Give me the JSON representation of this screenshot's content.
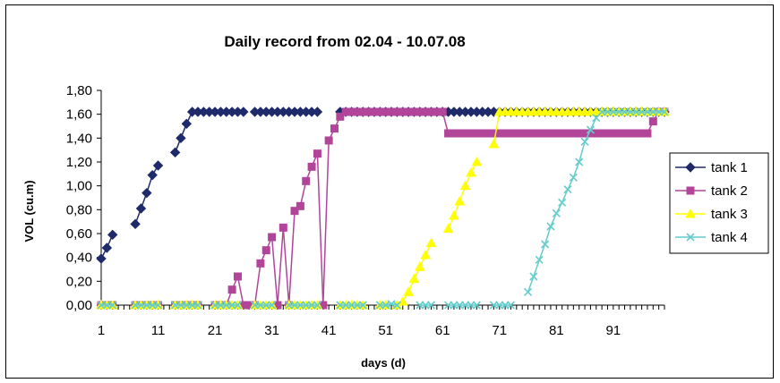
{
  "chart_data": {
    "type": "line",
    "title": "Daily record from 02.04 - 10.07.08",
    "xlabel": "days (d)",
    "ylabel": "VOL (cu.m)",
    "xlim": [
      1,
      100
    ],
    "ylim": [
      0,
      1.8
    ],
    "x_ticks": [
      "1",
      "11",
      "21",
      "31",
      "41",
      "51",
      "61",
      "71",
      "81",
      "91"
    ],
    "y_ticks": [
      "0,00",
      "0,20",
      "0,40",
      "0,60",
      "0,80",
      "1,00",
      "1,20",
      "1,40",
      "1,60",
      "1,80"
    ],
    "grid": false,
    "legend_position": "right",
    "series": [
      {
        "name": "tank 1",
        "color": "#1F2A6B",
        "marker": "diamond",
        "x": [
          1,
          2,
          3,
          7,
          8,
          9,
          10,
          11,
          14,
          15,
          16,
          17,
          18,
          19,
          20,
          21,
          22,
          23,
          24,
          25,
          26,
          28,
          29,
          30,
          31,
          32,
          33,
          34,
          35,
          36,
          37,
          38,
          39,
          43,
          44,
          45,
          46,
          47,
          48,
          49,
          50,
          51,
          52,
          53,
          54,
          55,
          56,
          57,
          58,
          59,
          60,
          61,
          62,
          63,
          64,
          65,
          66,
          67,
          68,
          69,
          70,
          71,
          72,
          73,
          74,
          75,
          76,
          77,
          78,
          79,
          80,
          81,
          82,
          83,
          84,
          85,
          86,
          87,
          88,
          89,
          90,
          91,
          92,
          93,
          94,
          95,
          96,
          97,
          98,
          99,
          100
        ],
        "y": [
          0.39,
          0.48,
          0.59,
          0.68,
          0.81,
          0.94,
          1.09,
          1.17,
          1.28,
          1.4,
          1.52,
          1.62,
          1.62,
          1.62,
          1.62,
          1.62,
          1.62,
          1.62,
          1.62,
          1.62,
          1.62,
          1.62,
          1.62,
          1.62,
          1.62,
          1.62,
          1.62,
          1.62,
          1.62,
          1.62,
          1.62,
          1.62,
          1.62,
          1.62,
          1.62,
          1.62,
          1.62,
          1.62,
          1.62,
          1.62,
          1.62,
          1.62,
          1.62,
          1.62,
          1.62,
          1.62,
          1.62,
          1.62,
          1.62,
          1.62,
          1.62,
          1.62,
          1.62,
          1.62,
          1.62,
          1.62,
          1.62,
          1.62,
          1.62,
          1.62,
          1.62,
          1.62,
          1.62,
          1.62,
          1.62,
          1.62,
          1.62,
          1.62,
          1.62,
          1.62,
          1.62,
          1.62,
          1.62,
          1.62,
          1.62,
          1.62,
          1.62,
          1.62,
          1.62,
          1.62,
          1.62,
          1.62,
          1.62,
          1.62,
          1.62,
          1.62,
          1.62,
          1.62,
          1.62,
          1.62,
          1.62
        ]
      },
      {
        "name": "tank 2",
        "color": "#B2449A",
        "marker": "square",
        "x": [
          1,
          2,
          3,
          7,
          8,
          9,
          10,
          11,
          14,
          15,
          16,
          17,
          18,
          21,
          22,
          23,
          24,
          25,
          26,
          27,
          28,
          29,
          30,
          31,
          32,
          33,
          34,
          35,
          36,
          37,
          38,
          39,
          40,
          41,
          42,
          43,
          44,
          45,
          46,
          47,
          48,
          49,
          50,
          51,
          52,
          53,
          54,
          55,
          56,
          57,
          58,
          59,
          60,
          61,
          62,
          63,
          64,
          65,
          66,
          67,
          68,
          69,
          70,
          71,
          72,
          73,
          74,
          75,
          76,
          77,
          78,
          79,
          80,
          81,
          82,
          83,
          84,
          85,
          86,
          87,
          88,
          89,
          90,
          91,
          92,
          93,
          94,
          95,
          96,
          97,
          98,
          99,
          100
        ],
        "y": [
          0,
          0,
          0,
          0,
          0,
          0,
          0,
          0,
          0,
          0,
          0,
          0,
          0,
          0,
          0,
          0,
          0.13,
          0.24,
          0,
          0,
          0,
          0.35,
          0.46,
          0.57,
          0,
          0.65,
          0,
          0.79,
          0.83,
          1.04,
          1.16,
          1.27,
          0,
          1.38,
          1.48,
          1.58,
          1.62,
          1.62,
          1.62,
          1.62,
          1.62,
          1.62,
          1.62,
          1.62,
          1.62,
          1.62,
          1.62,
          1.62,
          1.62,
          1.62,
          1.62,
          1.62,
          1.62,
          1.62,
          1.44,
          1.44,
          1.44,
          1.44,
          1.44,
          1.44,
          1.44,
          1.44,
          1.44,
          1.44,
          1.44,
          1.44,
          1.44,
          1.44,
          1.44,
          1.44,
          1.44,
          1.44,
          1.44,
          1.44,
          1.44,
          1.44,
          1.44,
          1.44,
          1.44,
          1.44,
          1.44,
          1.44,
          1.44,
          1.44,
          1.44,
          1.44,
          1.44,
          1.44,
          1.44,
          1.44,
          1.54,
          1.62,
          1.62
        ]
      },
      {
        "name": "tank 3",
        "color": "#FFFF00",
        "marker": "triangle",
        "x": [
          1,
          2,
          3,
          7,
          8,
          9,
          10,
          11,
          14,
          15,
          16,
          17,
          18,
          21,
          22,
          23,
          24,
          25,
          28,
          29,
          30,
          31,
          34,
          35,
          36,
          37,
          38,
          39,
          43,
          44,
          45,
          46,
          47,
          50,
          51,
          53,
          54,
          55,
          56,
          57,
          58,
          59,
          62,
          63,
          64,
          65,
          66,
          67,
          70,
          71,
          72,
          73,
          74,
          75,
          76,
          77,
          78,
          79,
          80,
          81,
          82,
          83,
          84,
          85,
          86,
          87,
          88,
          89,
          90,
          91,
          92,
          93,
          94,
          95,
          96,
          97,
          98,
          99,
          100
        ],
        "y": [
          0,
          0,
          0,
          0,
          0,
          0,
          0,
          0,
          0,
          0,
          0,
          0,
          0,
          0,
          0,
          0,
          0,
          0,
          0,
          0,
          0,
          0,
          0,
          0,
          0,
          0,
          0,
          0,
          0,
          0,
          0,
          0,
          0,
          0,
          0,
          0,
          0.03,
          0.11,
          0.22,
          0.32,
          0.42,
          0.52,
          0.64,
          0.75,
          0.87,
          1.0,
          1.11,
          1.2,
          1.35,
          1.62,
          1.62,
          1.62,
          1.62,
          1.62,
          1.62,
          1.62,
          1.62,
          1.62,
          1.62,
          1.62,
          1.62,
          1.62,
          1.62,
          1.62,
          1.62,
          1.62,
          1.62,
          1.62,
          1.62,
          1.62,
          1.62,
          1.62,
          1.62,
          1.62,
          1.62,
          1.62,
          1.62,
          1.62,
          1.62
        ]
      },
      {
        "name": "tank 4",
        "color": "#66CCCC",
        "marker": "x",
        "x": [
          1,
          2,
          3,
          7,
          8,
          9,
          10,
          11,
          14,
          15,
          16,
          17,
          18,
          21,
          22,
          23,
          24,
          25,
          28,
          29,
          30,
          31,
          34,
          35,
          36,
          37,
          38,
          39,
          43,
          44,
          45,
          46,
          47,
          50,
          51,
          52,
          53,
          57,
          58,
          59,
          62,
          63,
          64,
          65,
          66,
          67,
          70,
          71,
          72,
          73,
          76,
          77,
          78,
          79,
          80,
          81,
          82,
          83,
          84,
          85,
          86,
          87,
          88,
          89,
          90,
          91,
          92,
          93,
          94,
          95,
          96,
          97,
          98,
          99,
          100
        ],
        "y": [
          0,
          0,
          0,
          0,
          0,
          0,
          0,
          0,
          0,
          0,
          0,
          0,
          0,
          0,
          0,
          0,
          0,
          0,
          0,
          0,
          0,
          0,
          0,
          0,
          0,
          0,
          0,
          0,
          0,
          0,
          0,
          0,
          0,
          0,
          0,
          0.01,
          0,
          0,
          0,
          0,
          0,
          0,
          0,
          0,
          0,
          0,
          0,
          0,
          0,
          0,
          0.11,
          0.24,
          0.38,
          0.51,
          0.66,
          0.77,
          0.86,
          0.97,
          1.07,
          1.2,
          1.37,
          1.47,
          1.57,
          1.62,
          1.62,
          1.62,
          1.62,
          1.62,
          1.62,
          1.62,
          1.62,
          1.62,
          1.62,
          1.62,
          1.62
        ]
      }
    ]
  }
}
